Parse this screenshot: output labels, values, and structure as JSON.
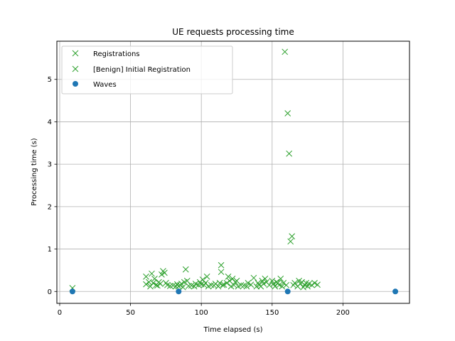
{
  "chart_data": {
    "type": "scatter",
    "title": "UE requests processing time",
    "xlabel": "Time elapsed (s)",
    "ylabel": "Processing time (s)",
    "xlim": [
      -2,
      247
    ],
    "ylim": [
      -0.28,
      5.9
    ],
    "xticks": [
      0,
      50,
      100,
      150,
      200
    ],
    "yticks": [
      0,
      1,
      2,
      3,
      4,
      5
    ],
    "grid": true,
    "legend_position": "top-left",
    "series": [
      {
        "name": "Registrations",
        "marker": "x",
        "color": "#2ca02c",
        "points": [
          [
            61,
            0.35
          ],
          [
            61,
            0.17
          ],
          [
            63,
            0.22
          ],
          [
            64,
            0.12
          ],
          [
            65,
            0.42
          ],
          [
            66,
            0.2
          ],
          [
            67,
            0.3
          ],
          [
            68,
            0.15
          ],
          [
            69,
            0.14
          ],
          [
            70,
            0.22
          ],
          [
            71,
            0.18
          ],
          [
            72,
            0.4
          ],
          [
            73,
            0.48
          ],
          [
            74,
            0.44
          ],
          [
            75,
            0.2
          ],
          [
            76,
            0.15
          ],
          [
            78,
            0.13
          ],
          [
            80,
            0.14
          ],
          [
            82,
            0.12
          ],
          [
            83,
            0.17
          ],
          [
            84,
            0.12
          ],
          [
            85,
            0.15
          ],
          [
            86,
            0.18
          ],
          [
            87,
            0.1
          ],
          [
            88,
            0.22
          ],
          [
            89,
            0.52
          ],
          [
            90,
            0.25
          ],
          [
            91,
            0.13
          ],
          [
            93,
            0.14
          ],
          [
            95,
            0.12
          ],
          [
            96,
            0.18
          ],
          [
            98,
            0.15
          ],
          [
            99,
            0.22
          ],
          [
            100,
            0.17
          ],
          [
            101,
            0.28
          ],
          [
            102,
            0.15
          ],
          [
            103,
            0.2
          ],
          [
            104,
            0.35
          ],
          [
            105,
            0.12
          ],
          [
            107,
            0.15
          ],
          [
            109,
            0.14
          ],
          [
            110,
            0.18
          ],
          [
            112,
            0.12
          ],
          [
            113,
            0.2
          ],
          [
            114,
            0.46
          ],
          [
            114,
            0.62
          ],
          [
            115,
            0.15
          ],
          [
            116,
            0.16
          ],
          [
            118,
            0.2
          ],
          [
            119,
            0.35
          ],
          [
            120,
            0.25
          ],
          [
            121,
            0.12
          ],
          [
            122,
            0.3
          ],
          [
            123,
            0.15
          ],
          [
            124,
            0.22
          ],
          [
            125,
            0.25
          ],
          [
            126,
            0.12
          ],
          [
            128,
            0.15
          ],
          [
            130,
            0.14
          ],
          [
            132,
            0.12
          ],
          [
            133,
            0.2
          ],
          [
            135,
            0.16
          ],
          [
            137,
            0.32
          ],
          [
            139,
            0.12
          ],
          [
            140,
            0.2
          ],
          [
            141,
            0.15
          ],
          [
            142,
            0.12
          ],
          [
            143,
            0.25
          ],
          [
            144,
            0.18
          ],
          [
            145,
            0.3
          ],
          [
            146,
            0.22
          ],
          [
            148,
            0.15
          ],
          [
            150,
            0.25
          ],
          [
            151,
            0.18
          ],
          [
            152,
            0.12
          ],
          [
            153,
            0.22
          ],
          [
            154,
            0.2
          ],
          [
            155,
            0.15
          ],
          [
            156,
            0.3
          ],
          [
            157,
            0.12
          ],
          [
            158,
            0.2
          ],
          [
            159,
            5.65
          ],
          [
            160,
            0.15
          ],
          [
            161,
            4.2
          ],
          [
            162,
            3.25
          ],
          [
            163,
            1.18
          ],
          [
            164,
            1.3
          ],
          [
            165,
            0.15
          ],
          [
            166,
            0.2
          ],
          [
            168,
            0.12
          ],
          [
            169,
            0.25
          ],
          [
            170,
            0.18
          ],
          [
            171,
            0.22
          ],
          [
            172,
            0.1
          ],
          [
            173,
            0.15
          ],
          [
            174,
            0.2
          ],
          [
            175,
            0.12
          ],
          [
            176,
            0.18
          ],
          [
            178,
            0.15
          ],
          [
            180,
            0.2
          ],
          [
            182,
            0.16
          ]
        ]
      },
      {
        "name": "[Benign] Initial Registration",
        "marker": "x",
        "color": "#2ca02c",
        "points": [
          [
            9,
            0.08
          ]
        ]
      },
      {
        "name": "Waves",
        "marker": "o",
        "color": "#1f77b4",
        "points": [
          [
            9,
            0
          ],
          [
            84,
            0
          ],
          [
            161,
            0
          ],
          [
            237,
            0
          ]
        ]
      }
    ]
  }
}
